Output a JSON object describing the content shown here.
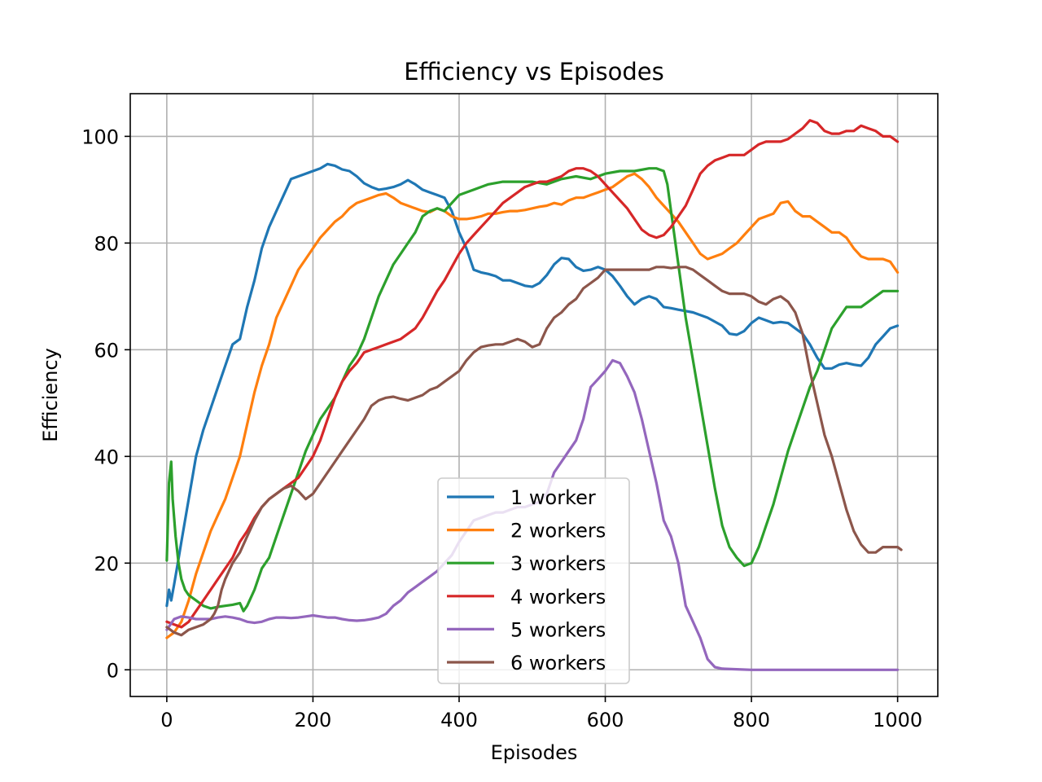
{
  "chart_data": {
    "type": "line",
    "title": "Efficiency vs Episodes",
    "xlabel": "Episodes",
    "ylabel": "Efficiency",
    "xlim": [
      -50,
      1055
    ],
    "ylim": [
      -5,
      108
    ],
    "xticks": [
      0,
      200,
      400,
      600,
      800,
      1000
    ],
    "yticks": [
      0,
      20,
      40,
      60,
      80,
      100
    ],
    "grid": true,
    "legend_position": "lower-center",
    "series": [
      {
        "name": "1 worker",
        "color": "#1f77b4",
        "x": [
          0,
          3,
          6,
          10,
          15,
          20,
          25,
          30,
          40,
          50,
          60,
          70,
          80,
          90,
          100,
          110,
          120,
          130,
          140,
          150,
          160,
          170,
          180,
          190,
          200,
          210,
          220,
          230,
          240,
          250,
          260,
          270,
          280,
          290,
          300,
          310,
          320,
          330,
          340,
          350,
          360,
          370,
          380,
          390,
          400,
          410,
          420,
          430,
          440,
          450,
          460,
          470,
          480,
          490,
          500,
          510,
          520,
          530,
          540,
          550,
          560,
          570,
          580,
          590,
          600,
          610,
          620,
          630,
          640,
          650,
          660,
          670,
          680,
          690,
          700,
          720,
          740,
          760,
          770,
          780,
          790,
          800,
          810,
          820,
          830,
          840,
          850,
          860,
          870,
          880,
          890,
          900,
          910,
          920,
          930,
          940,
          950,
          960,
          970,
          980,
          990,
          1000
        ],
        "y": [
          12,
          15,
          13,
          16,
          20,
          24,
          28,
          32,
          40,
          45,
          49,
          53,
          57,
          61,
          62,
          68,
          73,
          79,
          83,
          86,
          89,
          92,
          92.5,
          93,
          93.5,
          94,
          94.8,
          94.5,
          93.8,
          93.5,
          92.5,
          91.2,
          90.5,
          90,
          90.2,
          90.5,
          91,
          91.8,
          91,
          90,
          89.5,
          89,
          88.5,
          86,
          82,
          79,
          75,
          74.5,
          74.2,
          73.8,
          73,
          73,
          72.5,
          72,
          71.8,
          72.5,
          74,
          76,
          77.2,
          77,
          75.5,
          74.8,
          75,
          75.5,
          75,
          73.8,
          72,
          70,
          68.5,
          69.5,
          70,
          69.5,
          68,
          67.8,
          67.5,
          67,
          66,
          64.5,
          63,
          62.8,
          63.5,
          65,
          66,
          65.5,
          65,
          65.2,
          65,
          64,
          63,
          61,
          58.5,
          56.5,
          56.5,
          57.2,
          57.5,
          57.2,
          57,
          58.5,
          61,
          62.5,
          64,
          64.5
        ]
      },
      {
        "name": "2 workers",
        "color": "#ff7f0e",
        "x": [
          0,
          10,
          20,
          30,
          40,
          50,
          60,
          70,
          80,
          90,
          100,
          110,
          120,
          130,
          140,
          150,
          160,
          170,
          180,
          190,
          200,
          210,
          220,
          230,
          240,
          250,
          260,
          270,
          280,
          290,
          300,
          310,
          320,
          330,
          340,
          350,
          360,
          370,
          380,
          390,
          400,
          410,
          420,
          430,
          440,
          450,
          460,
          470,
          480,
          490,
          500,
          510,
          520,
          530,
          540,
          550,
          560,
          570,
          580,
          590,
          600,
          610,
          620,
          630,
          640,
          650,
          660,
          670,
          680,
          690,
          700,
          710,
          720,
          730,
          740,
          750,
          760,
          770,
          780,
          790,
          800,
          810,
          820,
          830,
          840,
          850,
          860,
          870,
          880,
          890,
          900,
          910,
          920,
          930,
          940,
          950,
          960,
          970,
          980,
          990,
          1000
        ],
        "y": [
          6,
          7,
          9,
          13,
          18,
          22,
          26,
          29,
          32,
          36,
          40,
          46,
          52,
          57,
          61,
          66,
          69,
          72,
          75,
          77,
          79,
          81,
          82.5,
          84,
          85,
          86.5,
          87.5,
          88,
          88.5,
          89,
          89.3,
          88.5,
          87.5,
          87,
          86.5,
          86,
          85.8,
          86.5,
          86,
          85,
          84.5,
          84.5,
          84.7,
          85,
          85.5,
          85.5,
          85.8,
          86,
          86,
          86.2,
          86.5,
          86.8,
          87,
          87.5,
          87.2,
          88,
          88.5,
          88.5,
          89,
          89.5,
          90,
          90.5,
          91.5,
          92.5,
          93,
          92,
          90.5,
          88.5,
          87,
          85.5,
          84,
          82,
          80,
          78,
          77,
          77.5,
          78,
          79,
          80,
          81.5,
          83,
          84.5,
          85,
          85.5,
          87.5,
          87.8,
          86,
          85,
          85,
          84,
          83,
          82,
          82,
          81,
          79,
          77.5,
          77,
          77,
          77,
          76.5,
          74.5
        ]
      },
      {
        "name": "3 workers",
        "color": "#2ca02c",
        "x": [
          0,
          3,
          6,
          8,
          12,
          16,
          20,
          25,
          30,
          40,
          50,
          60,
          70,
          80,
          90,
          100,
          105,
          110,
          120,
          130,
          140,
          150,
          160,
          170,
          180,
          190,
          200,
          210,
          220,
          230,
          240,
          250,
          260,
          270,
          280,
          290,
          300,
          310,
          320,
          330,
          340,
          350,
          360,
          370,
          380,
          390,
          400,
          420,
          440,
          460,
          480,
          500,
          520,
          540,
          560,
          580,
          600,
          620,
          640,
          660,
          670,
          680,
          685,
          690,
          700,
          710,
          720,
          730,
          740,
          750,
          760,
          770,
          780,
          790,
          800,
          810,
          820,
          830,
          840,
          850,
          860,
          870,
          880,
          890,
          900,
          910,
          920,
          930,
          940,
          950,
          960,
          970,
          980,
          990,
          1000
        ],
        "y": [
          20.5,
          35,
          39,
          32,
          25,
          20,
          17,
          15,
          14,
          13,
          12,
          11.5,
          11.8,
          12,
          12.2,
          12.5,
          11,
          12,
          15,
          19,
          21,
          25,
          29,
          33,
          37,
          41,
          44,
          47,
          49,
          51,
          54,
          57,
          59,
          62,
          66,
          70,
          73,
          76,
          78,
          80,
          82,
          85,
          86,
          86.5,
          86,
          87.5,
          89,
          90,
          91,
          91.5,
          91.5,
          91.5,
          91,
          92,
          92.5,
          92,
          93,
          93.5,
          93.5,
          94,
          94,
          93.5,
          91,
          86,
          76,
          66,
          58,
          50,
          42,
          34,
          27,
          23,
          21,
          19.5,
          20,
          23,
          27,
          31,
          36,
          41,
          45,
          49,
          53,
          56,
          60,
          64,
          66,
          68,
          68,
          68,
          69,
          70,
          71,
          71,
          71
        ]
      },
      {
        "name": "4 workers",
        "color": "#d62728",
        "x": [
          0,
          10,
          20,
          30,
          40,
          50,
          60,
          70,
          80,
          90,
          100,
          110,
          120,
          130,
          140,
          150,
          160,
          170,
          180,
          190,
          200,
          210,
          220,
          230,
          240,
          250,
          260,
          270,
          280,
          290,
          300,
          310,
          320,
          330,
          340,
          350,
          360,
          370,
          380,
          390,
          400,
          410,
          420,
          430,
          440,
          450,
          460,
          470,
          480,
          490,
          500,
          510,
          520,
          530,
          540,
          550,
          560,
          570,
          580,
          590,
          600,
          610,
          620,
          630,
          640,
          650,
          660,
          670,
          680,
          690,
          700,
          710,
          720,
          730,
          740,
          750,
          760,
          770,
          780,
          790,
          800,
          810,
          820,
          830,
          840,
          850,
          860,
          870,
          880,
          890,
          900,
          910,
          920,
          930,
          940,
          950,
          960,
          970,
          980,
          990,
          1000
        ],
        "y": [
          9,
          8.5,
          8,
          9,
          11,
          13,
          15,
          17,
          19,
          21,
          24,
          26,
          28.5,
          30.5,
          32,
          33,
          34,
          35,
          36,
          38,
          40,
          43,
          47,
          51,
          54,
          56,
          57.5,
          59.5,
          60,
          60.5,
          61,
          61.5,
          62,
          63,
          64,
          66,
          68.5,
          71,
          73,
          75.5,
          78,
          80,
          81.5,
          83,
          84.5,
          86,
          87.5,
          88.5,
          89.5,
          90.5,
          91,
          91.5,
          91.5,
          92,
          92.5,
          93.5,
          94,
          94,
          93.5,
          92.5,
          91,
          89.5,
          88,
          86.5,
          84.5,
          82.5,
          81.5,
          81,
          81.5,
          83,
          85,
          87,
          90,
          93,
          94.5,
          95.5,
          96,
          96.5,
          96.5,
          96.5,
          97.5,
          98.5,
          99,
          99,
          99,
          99.5,
          100.5,
          101.5,
          103,
          102.5,
          101,
          100.5,
          100.5,
          101,
          101,
          102,
          101.5,
          101,
          100,
          100,
          99
        ]
      },
      {
        "name": "5 workers",
        "color": "#9467bd",
        "x": [
          0,
          10,
          20,
          30,
          40,
          50,
          60,
          70,
          80,
          90,
          100,
          110,
          120,
          130,
          140,
          150,
          160,
          170,
          180,
          190,
          200,
          210,
          220,
          230,
          240,
          250,
          260,
          270,
          280,
          290,
          300,
          310,
          320,
          330,
          340,
          350,
          360,
          370,
          380,
          390,
          400,
          410,
          420,
          430,
          440,
          450,
          460,
          470,
          480,
          490,
          500,
          510,
          520,
          530,
          540,
          550,
          560,
          570,
          580,
          590,
          600,
          610,
          620,
          630,
          640,
          650,
          660,
          670,
          680,
          690,
          700,
          710,
          720,
          730,
          740,
          750,
          760,
          780,
          800,
          850,
          900,
          950,
          1000
        ],
        "y": [
          7.5,
          9.5,
          10,
          9.8,
          9.5,
          9.5,
          9.5,
          9.8,
          10,
          9.8,
          9.5,
          9,
          8.8,
          9,
          9.5,
          9.8,
          9.8,
          9.7,
          9.8,
          10,
          10.2,
          10,
          9.8,
          9.8,
          9.5,
          9.3,
          9.2,
          9.3,
          9.5,
          9.8,
          10.5,
          12,
          13,
          14.5,
          15.5,
          16.5,
          17.5,
          18.5,
          20,
          21.5,
          24,
          26,
          28,
          28.5,
          29,
          29.5,
          29.5,
          30,
          30.5,
          30.5,
          31,
          31.5,
          33,
          37,
          39,
          41,
          43,
          47,
          53,
          54.5,
          56,
          58,
          57.5,
          55,
          52,
          47,
          41,
          35,
          28,
          25,
          20,
          12,
          9,
          6,
          2,
          0.5,
          0.2,
          0.1,
          0,
          0,
          0,
          0,
          0
        ]
      },
      {
        "name": "6 workers",
        "color": "#8c564b",
        "x": [
          0,
          10,
          20,
          30,
          40,
          50,
          60,
          65,
          70,
          75,
          80,
          90,
          100,
          110,
          120,
          130,
          140,
          150,
          160,
          170,
          180,
          190,
          200,
          210,
          220,
          230,
          240,
          250,
          260,
          270,
          280,
          290,
          300,
          310,
          320,
          330,
          340,
          350,
          360,
          370,
          380,
          390,
          400,
          410,
          420,
          430,
          440,
          450,
          460,
          470,
          480,
          490,
          500,
          510,
          520,
          530,
          540,
          550,
          560,
          570,
          580,
          590,
          600,
          610,
          620,
          630,
          640,
          650,
          660,
          670,
          680,
          690,
          700,
          710,
          720,
          730,
          740,
          750,
          760,
          770,
          780,
          790,
          800,
          810,
          820,
          830,
          840,
          850,
          860,
          870,
          880,
          890,
          900,
          910,
          920,
          930,
          940,
          950,
          960,
          970,
          980,
          990,
          1000,
          1005
        ],
        "y": [
          8,
          7,
          6.5,
          7.5,
          8,
          8.5,
          9.5,
          10.5,
          12,
          15,
          17,
          20,
          22,
          25,
          28,
          30.5,
          32,
          33,
          34,
          34.5,
          33.5,
          32,
          33,
          35,
          37,
          39,
          41,
          43,
          45,
          47,
          49.5,
          50.5,
          51,
          51.2,
          50.8,
          50.5,
          51,
          51.5,
          52.5,
          53,
          54,
          55,
          56,
          58,
          59.5,
          60.5,
          60.8,
          61,
          61,
          61.5,
          62,
          61.5,
          60.5,
          61,
          64,
          66,
          67,
          68.5,
          69.5,
          71.5,
          72.5,
          73.5,
          75,
          75,
          75,
          75,
          75,
          75,
          75,
          75.5,
          75.5,
          75.3,
          75.5,
          75.5,
          75,
          74,
          73,
          72,
          71,
          70.5,
          70.5,
          70.5,
          70,
          69,
          68.5,
          69.5,
          70,
          69,
          67,
          63,
          56,
          50,
          44,
          40,
          35,
          30,
          26,
          23.5,
          22,
          22,
          23,
          23,
          23,
          22.5
        ]
      }
    ]
  }
}
